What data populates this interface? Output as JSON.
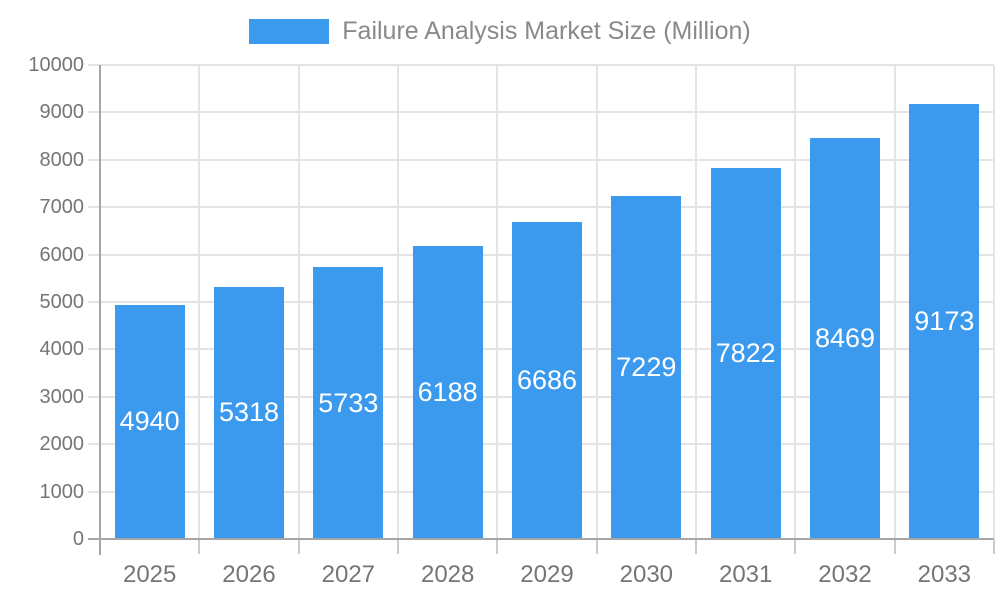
{
  "legend": {
    "label": "Failure Analysis Market Size (Million)"
  },
  "chart_data": {
    "type": "bar",
    "title": "Failure Analysis Market Size (Million)",
    "categories": [
      "2025",
      "2026",
      "2027",
      "2028",
      "2029",
      "2030",
      "2031",
      "2032",
      "2033"
    ],
    "values": [
      4940,
      5318,
      5733,
      6188,
      6686,
      7229,
      7822,
      8469,
      9173
    ],
    "xlabel": "",
    "ylabel": "",
    "ylim": [
      0,
      10000
    ],
    "ytick_step": 1000,
    "ytick_labels": [
      "0",
      "1000",
      "2000",
      "3000",
      "4000",
      "5000",
      "6000",
      "7000",
      "8000",
      "9000",
      "10000"
    ],
    "grid": true,
    "legend_position": "top",
    "bar_label_position": "inside-center"
  },
  "colors": {
    "bar": "#3B9AEE",
    "bar_label": "#FFFFFF",
    "gridline": "#E4E4E4",
    "axis_line": "#A6A6A6",
    "tick_mark": "#CBCBCB",
    "axis_text": "#757575",
    "legend_text": "#898989",
    "background": "#FFFFFF"
  }
}
